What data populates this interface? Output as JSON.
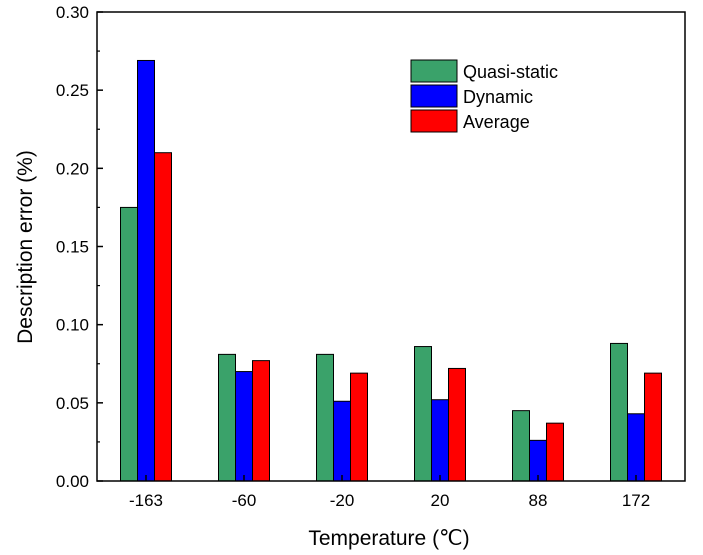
{
  "chart_data": {
    "type": "bar",
    "categories": [
      "-163",
      "-60",
      "-20",
      "20",
      "88",
      "172"
    ],
    "series": [
      {
        "name": "Quasi-static",
        "color": "#3aa26a",
        "values": [
          0.175,
          0.081,
          0.081,
          0.086,
          0.045,
          0.088
        ]
      },
      {
        "name": "Dynamic",
        "color": "#0000ff",
        "values": [
          0.269,
          0.07,
          0.051,
          0.052,
          0.026,
          0.043
        ]
      },
      {
        "name": "Average",
        "color": "#ff0000",
        "values": [
          0.21,
          0.077,
          0.069,
          0.072,
          0.037,
          0.069
        ]
      }
    ],
    "xlabel": "Temperature (℃)",
    "ylabel": "Description error (%)",
    "ylim": [
      0,
      0.3
    ],
    "yticks": [
      "0.00",
      "0.05",
      "0.10",
      "0.15",
      "0.20",
      "0.25",
      "0.30"
    ],
    "legend_position": "top-right",
    "grid": false
  }
}
